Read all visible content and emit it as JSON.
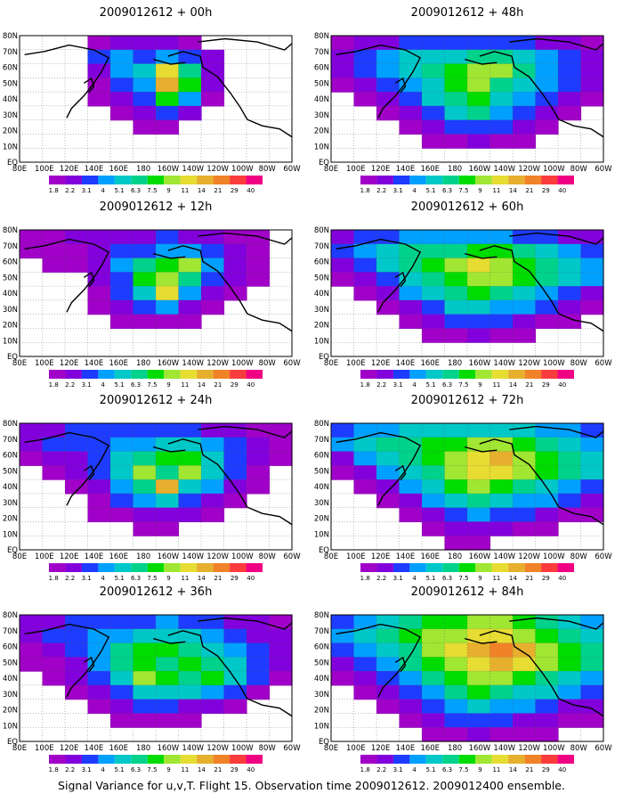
{
  "caption": "Signal Variance for u,v,T. Flight 15. Observation time 2009012612. 2009012400 ensemble.",
  "x_ticks": [
    "80E",
    "100E",
    "120E",
    "140E",
    "160E",
    "180",
    "160W",
    "140W",
    "120W",
    "100W",
    "80W",
    "60W"
  ],
  "y_ticks": [
    "80N",
    "70N",
    "60N",
    "50N",
    "40N",
    "30N",
    "20N",
    "10N",
    "EQ"
  ],
  "levels": [
    "1.8",
    "2.2",
    "3.1",
    "4",
    "5.1",
    "6.3",
    "7.5",
    "9",
    "11",
    "14",
    "21",
    "29",
    "40"
  ],
  "colors": [
    "#a000c8",
    "#8200dc",
    "#1e3cff",
    "#00a0ff",
    "#00c8c8",
    "#00d28c",
    "#00dc00",
    "#a0e632",
    "#e6dc32",
    "#e6af2d",
    "#f08228",
    "#fa3c3c",
    "#f00082"
  ],
  "panels": [
    {
      "title": "2009012612 + 00h",
      "hour": 0
    },
    {
      "title": "2009012612 + 48h",
      "hour": 48
    },
    {
      "title": "2009012612 + 12h",
      "hour": 12
    },
    {
      "title": "2009012612 + 60h",
      "hour": 60
    },
    {
      "title": "2009012612 + 24h",
      "hour": 24
    },
    {
      "title": "2009012612 + 72h",
      "hour": 72
    },
    {
      "title": "2009012612 + 36h",
      "hour": 36
    },
    {
      "title": "2009012612 + 84h",
      "hour": 84
    }
  ],
  "chart_data": [
    {
      "type": "heatmap",
      "title": "2009012612 + 00h",
      "x": [
        "80E",
        "100E",
        "120E",
        "140E",
        "160E",
        "180",
        "160W",
        "140W",
        "120W",
        "100W",
        "80W",
        "60W"
      ],
      "y": [
        "80N",
        "70N",
        "60N",
        "50N",
        "40N",
        "30N",
        "20N",
        "10N",
        "EQ"
      ],
      "levels": [
        1.8,
        2.2,
        3.1,
        4,
        5.1,
        6.3,
        7.5,
        9,
        11,
        14,
        21,
        29,
        40
      ],
      "values": [
        [
          0,
          0,
          0,
          1,
          2,
          2,
          2,
          1,
          0,
          0,
          0,
          0
        ],
        [
          0,
          0,
          0,
          3,
          4,
          3,
          4,
          3,
          2,
          0,
          0,
          0
        ],
        [
          0,
          0,
          0,
          2,
          4,
          5,
          9,
          6,
          2,
          0,
          0,
          0
        ],
        [
          0,
          0,
          0,
          1,
          3,
          4,
          10,
          7,
          2,
          0,
          0,
          0
        ],
        [
          0,
          0,
          0,
          1,
          2,
          3,
          7,
          4,
          1,
          0,
          0,
          0
        ],
        [
          0,
          0,
          0,
          0,
          1,
          2,
          3,
          2,
          0,
          0,
          0,
          0
        ],
        [
          0,
          0,
          0,
          0,
          0,
          1,
          1,
          0,
          0,
          0,
          0,
          0
        ],
        [
          0,
          0,
          0,
          0,
          0,
          0,
          0,
          0,
          0,
          0,
          0,
          0
        ],
        [
          0,
          0,
          0,
          0,
          0,
          0,
          0,
          0,
          0,
          0,
          0,
          0
        ]
      ]
    },
    {
      "type": "heatmap",
      "title": "2009012612 + 12h",
      "x": [
        "80E",
        "100E",
        "120E",
        "140E",
        "160E",
        "180",
        "160W",
        "140W",
        "120W",
        "100W",
        "80W",
        "60W"
      ],
      "y": [
        "80N",
        "70N",
        "60N",
        "50N",
        "40N",
        "30N",
        "20N",
        "10N",
        "EQ"
      ],
      "levels": [
        1.8,
        2.2,
        3.1,
        4,
        5.1,
        6.3,
        7.5,
        9,
        11,
        14,
        21,
        29,
        40
      ],
      "values": [
        [
          1,
          1,
          2,
          2,
          2,
          2,
          3,
          2,
          2,
          1,
          1,
          0
        ],
        [
          1,
          1,
          1,
          2,
          3,
          3,
          4,
          4,
          3,
          2,
          1,
          0
        ],
        [
          0,
          1,
          1,
          2,
          4,
          6,
          7,
          8,
          4,
          2,
          1,
          0
        ],
        [
          0,
          0,
          0,
          2,
          3,
          7,
          8,
          6,
          3,
          2,
          1,
          0
        ],
        [
          0,
          0,
          0,
          1,
          3,
          5,
          9,
          4,
          2,
          1,
          0,
          0
        ],
        [
          0,
          0,
          0,
          1,
          2,
          3,
          4,
          2,
          1,
          0,
          0,
          0
        ],
        [
          0,
          0,
          0,
          0,
          1,
          1,
          1,
          1,
          0,
          0,
          0,
          0
        ],
        [
          0,
          0,
          0,
          0,
          0,
          0,
          0,
          0,
          0,
          0,
          0,
          0
        ],
        [
          0,
          0,
          0,
          0,
          0,
          0,
          0,
          0,
          0,
          0,
          0,
          0
        ]
      ]
    },
    {
      "type": "heatmap",
      "title": "2009012612 + 24h",
      "x": [
        "80E",
        "100E",
        "120E",
        "140E",
        "160E",
        "180",
        "160W",
        "140W",
        "120W",
        "100W",
        "80W",
        "60W"
      ],
      "y": [
        "80N",
        "70N",
        "60N",
        "50N",
        "40N",
        "30N",
        "20N",
        "10N",
        "EQ"
      ],
      "levels": [
        1.8,
        2.2,
        3.1,
        4,
        5.1,
        6.3,
        7.5,
        9,
        11,
        14,
        21,
        29,
        40
      ],
      "values": [
        [
          2,
          2,
          3,
          3,
          3,
          3,
          3,
          3,
          2,
          2,
          1,
          1
        ],
        [
          2,
          3,
          3,
          3,
          4,
          4,
          5,
          5,
          4,
          3,
          2,
          1
        ],
        [
          1,
          2,
          2,
          3,
          5,
          6,
          7,
          7,
          5,
          3,
          2,
          1
        ],
        [
          0,
          1,
          2,
          3,
          5,
          8,
          6,
          8,
          5,
          3,
          1,
          0
        ],
        [
          0,
          0,
          1,
          2,
          4,
          6,
          10,
          5,
          4,
          2,
          1,
          0
        ],
        [
          0,
          0,
          0,
          1,
          3,
          4,
          5,
          3,
          2,
          1,
          0,
          0
        ],
        [
          0,
          0,
          0,
          1,
          1,
          2,
          2,
          2,
          1,
          0,
          0,
          0
        ],
        [
          0,
          0,
          0,
          0,
          0,
          1,
          1,
          0,
          0,
          0,
          0,
          0
        ],
        [
          0,
          0,
          0,
          0,
          0,
          0,
          0,
          0,
          0,
          0,
          0,
          0
        ]
      ]
    },
    {
      "type": "heatmap",
      "title": "2009012612 + 36h",
      "x": [
        "80E",
        "100E",
        "120E",
        "140E",
        "160E",
        "180",
        "160W",
        "140W",
        "120W",
        "100W",
        "80W",
        "60W"
      ],
      "y": [
        "80N",
        "70N",
        "60N",
        "50N",
        "40N",
        "30N",
        "20N",
        "10N",
        "EQ"
      ],
      "levels": [
        1.8,
        2.2,
        3.1,
        4,
        5.1,
        6.3,
        7.5,
        9,
        11,
        14,
        21,
        29,
        40
      ],
      "values": [
        [
          2,
          2,
          3,
          3,
          3,
          3,
          4,
          3,
          3,
          2,
          2,
          1
        ],
        [
          2,
          3,
          3,
          4,
          4,
          5,
          5,
          5,
          4,
          3,
          2,
          2
        ],
        [
          1,
          2,
          3,
          4,
          6,
          7,
          7,
          6,
          5,
          4,
          3,
          2
        ],
        [
          1,
          1,
          2,
          4,
          6,
          7,
          6,
          7,
          6,
          5,
          3,
          2
        ],
        [
          0,
          1,
          2,
          3,
          5,
          8,
          7,
          6,
          7,
          5,
          3,
          1
        ],
        [
          0,
          0,
          1,
          2,
          3,
          5,
          5,
          5,
          4,
          3,
          1,
          0
        ],
        [
          0,
          0,
          0,
          1,
          2,
          3,
          3,
          2,
          2,
          1,
          0,
          0
        ],
        [
          0,
          0,
          0,
          0,
          1,
          1,
          1,
          1,
          0,
          0,
          0,
          0
        ],
        [
          0,
          0,
          0,
          0,
          0,
          0,
          0,
          0,
          0,
          0,
          0,
          0
        ]
      ]
    },
    {
      "type": "heatmap",
      "title": "2009012612 + 48h",
      "x": [
        "80E",
        "100E",
        "120E",
        "140E",
        "160E",
        "180",
        "160W",
        "140W",
        "120W",
        "100W",
        "80W",
        "60W"
      ],
      "y": [
        "80N",
        "70N",
        "60N",
        "50N",
        "40N",
        "30N",
        "20N",
        "10N",
        "EQ"
      ],
      "levels": [
        1.8,
        2.2,
        3.1,
        4,
        5.1,
        6.3,
        7.5,
        9,
        11,
        14,
        21,
        29,
        40
      ],
      "values": [
        [
          1,
          2,
          2,
          3,
          3,
          3,
          3,
          3,
          3,
          2,
          2,
          1
        ],
        [
          2,
          3,
          4,
          5,
          5,
          5,
          6,
          6,
          5,
          4,
          3,
          2
        ],
        [
          2,
          3,
          4,
          5,
          6,
          7,
          8,
          8,
          6,
          4,
          3,
          2
        ],
        [
          1,
          2,
          3,
          4,
          5,
          7,
          8,
          6,
          5,
          4,
          3,
          2
        ],
        [
          0,
          1,
          2,
          3,
          5,
          6,
          7,
          5,
          4,
          3,
          2,
          1
        ],
        [
          0,
          0,
          1,
          2,
          3,
          5,
          6,
          4,
          3,
          2,
          1,
          0
        ],
        [
          0,
          0,
          0,
          1,
          2,
          3,
          3,
          3,
          2,
          1,
          0,
          0
        ],
        [
          0,
          0,
          0,
          0,
          1,
          1,
          2,
          1,
          1,
          0,
          0,
          0
        ],
        [
          0,
          0,
          0,
          0,
          0,
          0,
          0,
          0,
          0,
          0,
          0,
          0
        ]
      ]
    },
    {
      "type": "heatmap",
      "title": "2009012612 + 60h",
      "x": [
        "80E",
        "100E",
        "120E",
        "140E",
        "160E",
        "180",
        "160W",
        "140W",
        "120W",
        "100W",
        "80W",
        "60W"
      ],
      "y": [
        "80N",
        "70N",
        "60N",
        "50N",
        "40N",
        "30N",
        "20N",
        "10N",
        "EQ"
      ],
      "levels": [
        1.8,
        2.2,
        3.1,
        4,
        5.1,
        6.3,
        7.5,
        9,
        11,
        14,
        21,
        29,
        40
      ],
      "values": [
        [
          2,
          3,
          3,
          4,
          4,
          4,
          4,
          4,
          3,
          3,
          2,
          2
        ],
        [
          3,
          4,
          5,
          6,
          6,
          6,
          7,
          7,
          6,
          5,
          4,
          3
        ],
        [
          2,
          3,
          5,
          6,
          7,
          8,
          9,
          8,
          7,
          6,
          5,
          4
        ],
        [
          1,
          2,
          3,
          5,
          6,
          7,
          8,
          8,
          7,
          6,
          5,
          4
        ],
        [
          0,
          1,
          2,
          4,
          5,
          6,
          7,
          6,
          5,
          4,
          3,
          2
        ],
        [
          0,
          0,
          1,
          2,
          3,
          5,
          5,
          4,
          4,
          3,
          2,
          1
        ],
        [
          0,
          0,
          0,
          1,
          2,
          3,
          3,
          3,
          2,
          1,
          1,
          0
        ],
        [
          0,
          0,
          0,
          0,
          1,
          1,
          2,
          1,
          1,
          0,
          0,
          0
        ],
        [
          0,
          0,
          0,
          0,
          0,
          0,
          0,
          0,
          0,
          0,
          0,
          0
        ]
      ]
    },
    {
      "type": "heatmap",
      "title": "2009012612 + 72h",
      "x": [
        "80E",
        "100E",
        "120E",
        "140E",
        "160E",
        "180",
        "160W",
        "140W",
        "120W",
        "100W",
        "80W",
        "60W"
      ],
      "y": [
        "80N",
        "70N",
        "60N",
        "50N",
        "40N",
        "30N",
        "20N",
        "10N",
        "EQ"
      ],
      "levels": [
        1.8,
        2.2,
        3.1,
        4,
        5.1,
        6.3,
        7.5,
        9,
        11,
        14,
        21,
        29,
        40
      ],
      "values": [
        [
          3,
          4,
          4,
          5,
          5,
          5,
          5,
          5,
          5,
          4,
          4,
          3
        ],
        [
          4,
          5,
          6,
          6,
          7,
          7,
          8,
          8,
          7,
          6,
          5,
          4
        ],
        [
          2,
          4,
          5,
          6,
          7,
          8,
          9,
          10,
          8,
          7,
          6,
          5
        ],
        [
          1,
          2,
          4,
          5,
          6,
          8,
          9,
          9,
          8,
          7,
          6,
          5
        ],
        [
          0,
          1,
          2,
          4,
          5,
          7,
          8,
          7,
          6,
          5,
          4,
          3
        ],
        [
          0,
          0,
          1,
          2,
          4,
          5,
          6,
          5,
          4,
          4,
          3,
          2
        ],
        [
          0,
          0,
          0,
          1,
          2,
          3,
          4,
          3,
          3,
          2,
          1,
          1
        ],
        [
          0,
          0,
          0,
          0,
          1,
          2,
          2,
          2,
          1,
          1,
          0,
          0
        ],
        [
          0,
          0,
          0,
          0,
          0,
          1,
          1,
          0,
          0,
          0,
          0,
          0
        ]
      ]
    },
    {
      "type": "heatmap",
      "title": "2009012612 + 84h",
      "x": [
        "80E",
        "100E",
        "120E",
        "140E",
        "160E",
        "180",
        "160W",
        "140W",
        "120W",
        "100W",
        "80W",
        "60W"
      ],
      "y": [
        "80N",
        "70N",
        "60N",
        "50N",
        "40N",
        "30N",
        "20N",
        "10N",
        "EQ"
      ],
      "levels": [
        1.8,
        2.2,
        3.1,
        4,
        5.1,
        6.3,
        7.5,
        9,
        11,
        14,
        21,
        29,
        40
      ],
      "values": [
        [
          3,
          4,
          5,
          6,
          7,
          7,
          8,
          8,
          7,
          6,
          5,
          4
        ],
        [
          4,
          5,
          6,
          7,
          8,
          8,
          9,
          9,
          8,
          7,
          6,
          5
        ],
        [
          3,
          4,
          5,
          6,
          8,
          9,
          10,
          11,
          10,
          8,
          7,
          6
        ],
        [
          2,
          3,
          4,
          6,
          7,
          8,
          9,
          10,
          9,
          8,
          7,
          6
        ],
        [
          1,
          2,
          3,
          4,
          6,
          7,
          8,
          8,
          7,
          6,
          5,
          4
        ],
        [
          0,
          1,
          2,
          3,
          4,
          6,
          7,
          6,
          5,
          5,
          4,
          3
        ],
        [
          0,
          0,
          1,
          2,
          3,
          4,
          5,
          4,
          4,
          3,
          2,
          2
        ],
        [
          0,
          0,
          0,
          1,
          2,
          3,
          3,
          3,
          2,
          2,
          1,
          1
        ],
        [
          0,
          0,
          0,
          0,
          1,
          1,
          2,
          1,
          1,
          1,
          0,
          0
        ]
      ]
    }
  ]
}
